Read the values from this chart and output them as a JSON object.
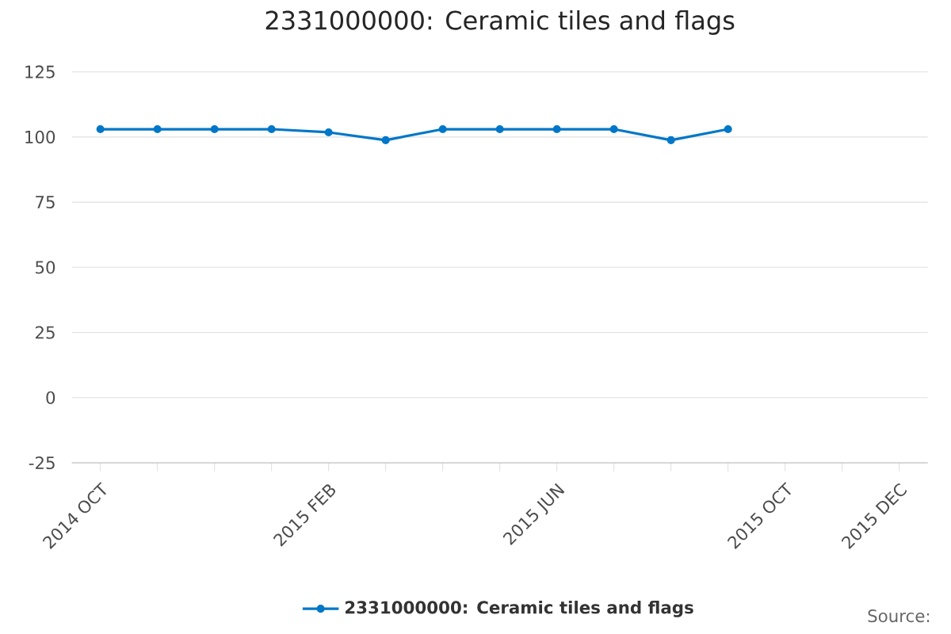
{
  "chart_data": {
    "type": "line",
    "title": "2331000000: Ceramic tiles and flags",
    "categories": [
      "2014 OCT",
      null,
      null,
      null,
      "2015 FEB",
      null,
      null,
      null,
      "2015 JUN",
      null,
      null,
      null,
      "2015 OCT",
      null,
      "2015 DEC"
    ],
    "series": [
      {
        "name": "2331000000: Ceramic tiles and flags",
        "color": "#0077c8",
        "values": [
          103,
          103,
          103,
          103,
          101.8,
          98.8,
          103,
          103,
          103,
          103,
          98.8,
          103,
          null,
          null,
          null
        ]
      }
    ],
    "ylim": [
      -25,
      125
    ],
    "yticks": [
      -25,
      0,
      25,
      50,
      75,
      100,
      125
    ],
    "grid": "y",
    "legend": "bottom",
    "marker": "circle",
    "line_style": "solid",
    "annotations": [
      "Source:"
    ]
  }
}
